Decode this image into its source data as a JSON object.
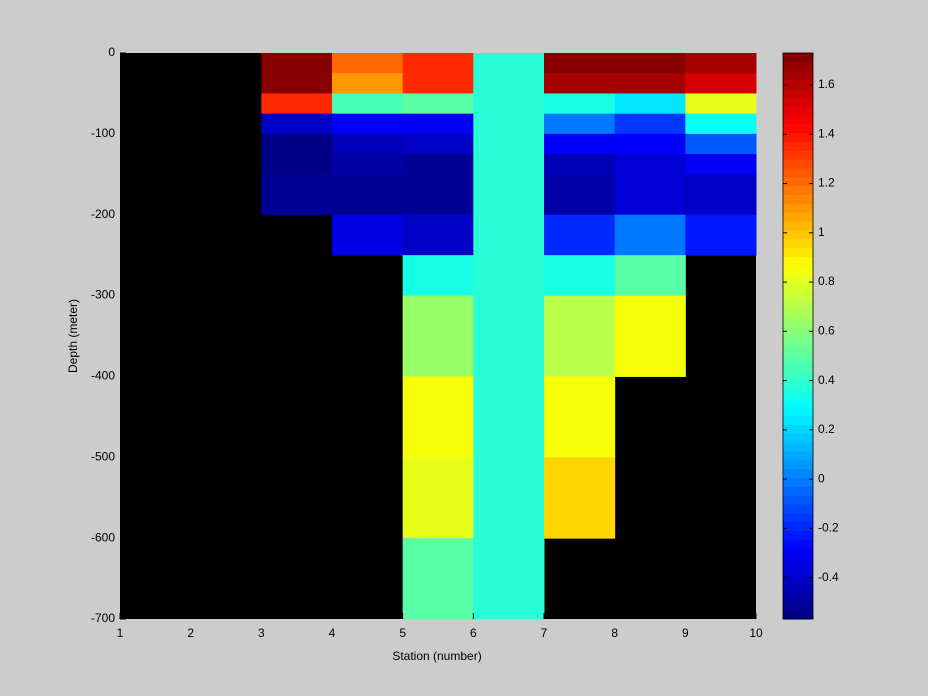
{
  "chart_data": {
    "type": "heatmap",
    "xlabel": "Station (number)",
    "ylabel": "Depth (meter)",
    "x_edges": [
      1,
      2,
      3,
      4,
      5,
      6,
      7,
      8,
      9,
      10
    ],
    "y_edges": [
      0,
      -25,
      -50,
      -75,
      -100,
      -125,
      -150,
      -200,
      -250,
      -300,
      -400,
      -500,
      -600,
      -700
    ],
    "values": [
      [
        null,
        null,
        1.7,
        1.2,
        1.35,
        0.4,
        1.7,
        1.7,
        1.65
      ],
      [
        null,
        null,
        1.7,
        1.1,
        1.35,
        0.4,
        1.65,
        1.65,
        1.55
      ],
      [
        null,
        null,
        1.35,
        0.45,
        0.5,
        0.4,
        0.35,
        0.25,
        0.8
      ],
      [
        null,
        null,
        -0.4,
        -0.3,
        -0.3,
        0.4,
        0.0,
        -0.15,
        0.3
      ],
      [
        null,
        null,
        -0.57,
        -0.45,
        -0.42,
        0.4,
        -0.3,
        -0.3,
        -0.1
      ],
      [
        null,
        null,
        -0.57,
        -0.48,
        -0.5,
        0.4,
        -0.45,
        -0.38,
        -0.3
      ],
      [
        null,
        null,
        -0.52,
        -0.5,
        -0.53,
        0.4,
        -0.48,
        -0.38,
        -0.42
      ],
      [
        null,
        null,
        null,
        -0.35,
        -0.4,
        0.4,
        -0.2,
        0.0,
        -0.22
      ],
      [
        null,
        null,
        null,
        null,
        0.35,
        0.4,
        0.35,
        0.5,
        null
      ],
      [
        null,
        null,
        null,
        null,
        0.65,
        0.4,
        0.7,
        0.85,
        null
      ],
      [
        null,
        null,
        null,
        null,
        0.85,
        0.4,
        0.85,
        null,
        null
      ],
      [
        null,
        null,
        null,
        null,
        0.8,
        0.4,
        0.95,
        null,
        null
      ],
      [
        null,
        null,
        null,
        null,
        0.5,
        0.4,
        null,
        null,
        null
      ]
    ],
    "xlim": [
      1,
      10
    ],
    "xticks": [
      1,
      2,
      3,
      4,
      5,
      6,
      7,
      8,
      9,
      10
    ],
    "ylim": [
      -700,
      0
    ],
    "yticks": [
      0,
      -100,
      -200,
      -300,
      -400,
      -500,
      -600,
      -700
    ],
    "colormap": "jet",
    "clim": [
      -0.568,
      1.73
    ],
    "cticks": [
      -0.4,
      -0.2,
      0,
      0.2,
      0.4,
      0.6,
      0.8,
      1,
      1.2,
      1.4,
      1.6
    ],
    "background": "#000000",
    "grid": false
  }
}
